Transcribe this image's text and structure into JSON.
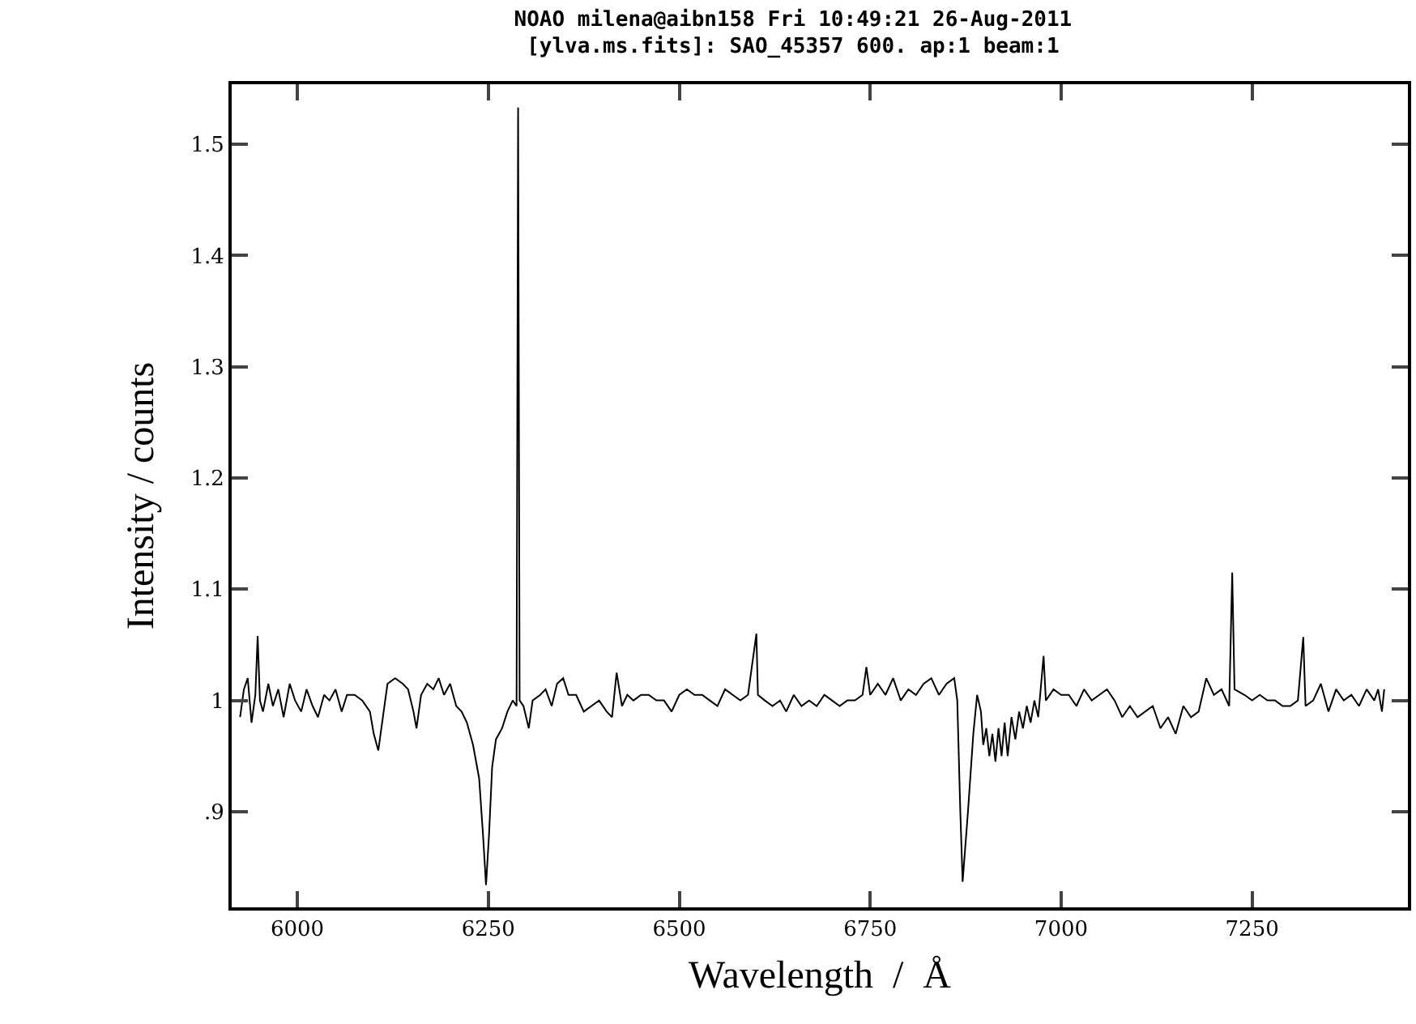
{
  "chart_data": {
    "type": "line",
    "title": "NOAO milena@aibn158 Fri 10:49:21 26-Aug-2011",
    "subtitle": "[ylva.ms.fits]: SAO_45357 600. ap:1 beam:1",
    "xlabel": "Wavelength  /  Å",
    "ylabel": "Intensity / counts",
    "x": [
      5925,
      5930,
      5935,
      5940,
      5945,
      5948,
      5951,
      5955,
      5962,
      5968,
      5975,
      5982,
      5990,
      5997,
      6005,
      6012,
      6020,
      6027,
      6035,
      6042,
      6050,
      6058,
      6065,
      6075,
      6085,
      6095,
      6100,
      6106,
      6112,
      6118,
      6128,
      6138,
      6145,
      6152,
      6156,
      6162,
      6170,
      6178,
      6185,
      6192,
      6200,
      6208,
      6215,
      6222,
      6230,
      6238,
      6243,
      6247,
      6251,
      6255,
      6260,
      6268,
      6275,
      6282,
      6287,
      6289,
      6291,
      6296,
      6303,
      6308,
      6318,
      6325,
      6333,
      6340,
      6348,
      6355,
      6365,
      6375,
      6385,
      6395,
      6405,
      6412,
      6418,
      6425,
      6432,
      6440,
      6450,
      6460,
      6470,
      6480,
      6490,
      6500,
      6510,
      6520,
      6530,
      6540,
      6550,
      6560,
      6570,
      6580,
      6590,
      6601,
      6603,
      6612,
      6622,
      6632,
      6640,
      6650,
      6660,
      6670,
      6680,
      6690,
      6700,
      6710,
      6720,
      6730,
      6740,
      6745,
      6750,
      6760,
      6770,
      6780,
      6790,
      6800,
      6810,
      6820,
      6830,
      6840,
      6850,
      6860,
      6864,
      6868,
      6871,
      6878,
      6885,
      6890,
      6895,
      6898,
      6902,
      6906,
      6910,
      6914,
      6918,
      6922,
      6926,
      6930,
      6935,
      6940,
      6945,
      6950,
      6955,
      6960,
      6965,
      6970,
      6977,
      6980,
      6990,
      7000,
      7010,
      7020,
      7030,
      7040,
      7050,
      7060,
      7070,
      7080,
      7090,
      7100,
      7110,
      7120,
      7130,
      7140,
      7150,
      7160,
      7170,
      7180,
      7190,
      7200,
      7210,
      7220,
      7224,
      7227,
      7240,
      7250,
      7260,
      7270,
      7280,
      7290,
      7300,
      7310,
      7317,
      7320,
      7330,
      7340,
      7350,
      7360,
      7370,
      7380,
      7390,
      7400,
      7410,
      7415,
      7420,
      7423
    ],
    "series": [
      {
        "color": "#000000",
        "values": [
          0.985,
          1.01,
          1.02,
          0.98,
          1.005,
          1.058,
          1.0,
          0.99,
          1.015,
          0.995,
          1.01,
          0.985,
          1.015,
          1.0,
          0.99,
          1.01,
          0.995,
          0.985,
          1.005,
          1.0,
          1.01,
          0.99,
          1.005,
          1.005,
          1.0,
          0.99,
          0.97,
          0.955,
          0.985,
          1.015,
          1.02,
          1.015,
          1.01,
          0.99,
          0.975,
          1.005,
          1.015,
          1.01,
          1.02,
          1.005,
          1.015,
          0.995,
          0.99,
          0.98,
          0.96,
          0.93,
          0.88,
          0.834,
          0.88,
          0.94,
          0.965,
          0.975,
          0.99,
          1.0,
          0.995,
          1.533,
          1.0,
          0.995,
          0.975,
          1.0,
          1.005,
          1.01,
          0.995,
          1.015,
          1.02,
          1.005,
          1.005,
          0.99,
          0.995,
          1.0,
          0.99,
          0.985,
          1.025,
          0.995,
          1.005,
          1.0,
          1.005,
          1.005,
          1.0,
          1.0,
          0.99,
          1.005,
          1.01,
          1.005,
          1.005,
          1.0,
          0.995,
          1.01,
          1.005,
          1.0,
          1.005,
          1.06,
          1.005,
          1.0,
          0.995,
          1.0,
          0.99,
          1.005,
          0.995,
          1.0,
          0.995,
          1.005,
          1.0,
          0.995,
          1.0,
          1.0,
          1.005,
          1.03,
          1.005,
          1.015,
          1.005,
          1.02,
          1.0,
          1.01,
          1.005,
          1.015,
          1.02,
          1.005,
          1.015,
          1.02,
          1.0,
          0.9,
          0.837,
          0.9,
          0.97,
          1.005,
          0.99,
          0.96,
          0.975,
          0.95,
          0.97,
          0.945,
          0.975,
          0.95,
          0.98,
          0.95,
          0.985,
          0.965,
          0.99,
          0.975,
          0.995,
          0.98,
          1.0,
          0.985,
          1.04,
          1.0,
          1.01,
          1.005,
          1.005,
          0.995,
          1.01,
          1.0,
          1.005,
          1.01,
          1.0,
          0.985,
          0.995,
          0.985,
          0.99,
          0.995,
          0.975,
          0.985,
          0.97,
          0.995,
          0.985,
          0.99,
          1.02,
          1.005,
          1.01,
          0.995,
          1.115,
          1.01,
          1.005,
          1.0,
          1.005,
          1.0,
          1.0,
          0.995,
          0.995,
          1.0,
          1.057,
          0.995,
          1.0,
          1.015,
          0.99,
          1.01,
          1.0,
          1.005,
          0.995,
          1.01,
          1.0,
          1.01,
          0.99,
          1.01
        ]
      }
    ],
    "xlim": [
      5914,
      7454
    ],
    "xticks": [
      6000,
      6250,
      6500,
      6750,
      7000,
      7250
    ],
    "ylim": [
      0.814,
      1.554
    ],
    "yticks": [
      {
        "value": 0.9,
        "label": ".9"
      },
      1,
      1.1,
      1.2,
      1.3,
      1.4,
      1.5
    ],
    "marker": "none",
    "line_style": "solid"
  }
}
